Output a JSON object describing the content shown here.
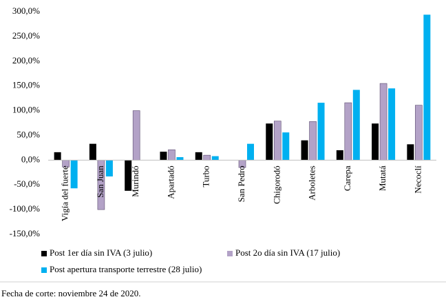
{
  "chart_data": {
    "type": "bar",
    "categories": [
      "Vigía del fuerte",
      "San Juan",
      "Murindó",
      "Apartadó",
      "Turbo",
      "San Pedro",
      "Chigorodó",
      "Arboletes",
      "Carepa",
      "Mutatá",
      "Necoclí"
    ],
    "series": [
      {
        "name": "Post 1er día sin IVA (3 julio)",
        "color": "#000000",
        "values": [
          16,
          33,
          -62,
          17,
          16,
          0,
          74,
          40,
          20,
          74,
          32
        ]
      },
      {
        "name": "Post 2o día sin IVA (17 julio)",
        "color": "#b3a2c7",
        "values": [
          -14,
          -100,
          100,
          21,
          10,
          -15,
          79,
          78,
          116,
          155,
          111
        ]
      },
      {
        "name": "Post apertura transporte terrestre (28 julio)",
        "color": "#00b0f0",
        "values": [
          -57,
          -33,
          0,
          6,
          8,
          33,
          56,
          116,
          142,
          145,
          294
        ]
      }
    ],
    "ylim": [
      -150,
      300
    ],
    "yticks": [
      {
        "value": -150,
        "label": "-150,0%"
      },
      {
        "value": -100,
        "label": "-100,0%"
      },
      {
        "value": -50,
        "label": "-50,0%"
      },
      {
        "value": 0,
        "label": "0,0%"
      },
      {
        "value": 50,
        "label": "50,0%"
      },
      {
        "value": 100,
        "label": "100,0%"
      },
      {
        "value": 150,
        "label": "150,0%"
      },
      {
        "value": 200,
        "label": "200,0%"
      },
      {
        "value": 250,
        "label": "250,0%"
      },
      {
        "value": 300,
        "label": "300,0%"
      }
    ],
    "grid": false,
    "legend": "bottom",
    "footnote": "Fecha de corte: noviembre 24 de 2020."
  }
}
